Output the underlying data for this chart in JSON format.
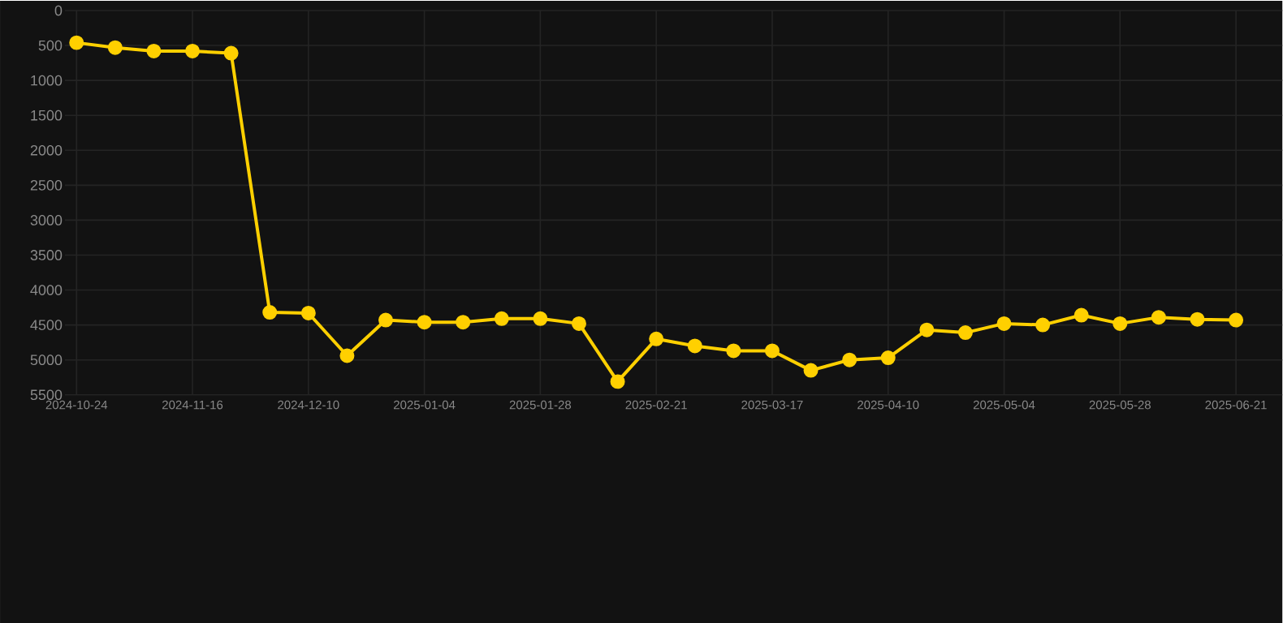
{
  "chart_data": {
    "type": "line",
    "categories": [
      "2024-10-24",
      null,
      null,
      "2024-11-16",
      null,
      null,
      "2024-12-10",
      null,
      null,
      "2025-01-04",
      null,
      null,
      "2025-01-28",
      null,
      null,
      "2025-02-21",
      null,
      null,
      "2025-03-17",
      null,
      null,
      "2025-04-10",
      null,
      null,
      "2025-05-04",
      null,
      null,
      "2025-05-28",
      null,
      null,
      "2025-06-21"
    ],
    "series": [
      {
        "color": "#ffd000",
        "values": [
          460,
          530,
          580,
          580,
          610,
          4320,
          4330,
          4940,
          4430,
          4460,
          4460,
          4410,
          4410,
          4480,
          5310,
          4700,
          4800,
          4870,
          4870,
          5150,
          5000,
          4970,
          4570,
          4610,
          4480,
          4500,
          4360,
          4480,
          4390,
          4420,
          4430
        ]
      }
    ],
    "ylim": [
      5500,
      0
    ],
    "yticks": [
      0,
      500,
      1000,
      1500,
      2000,
      2500,
      3000,
      3500,
      4000,
      4500,
      5000,
      5500
    ],
    "grid": true,
    "marker": "circle"
  }
}
